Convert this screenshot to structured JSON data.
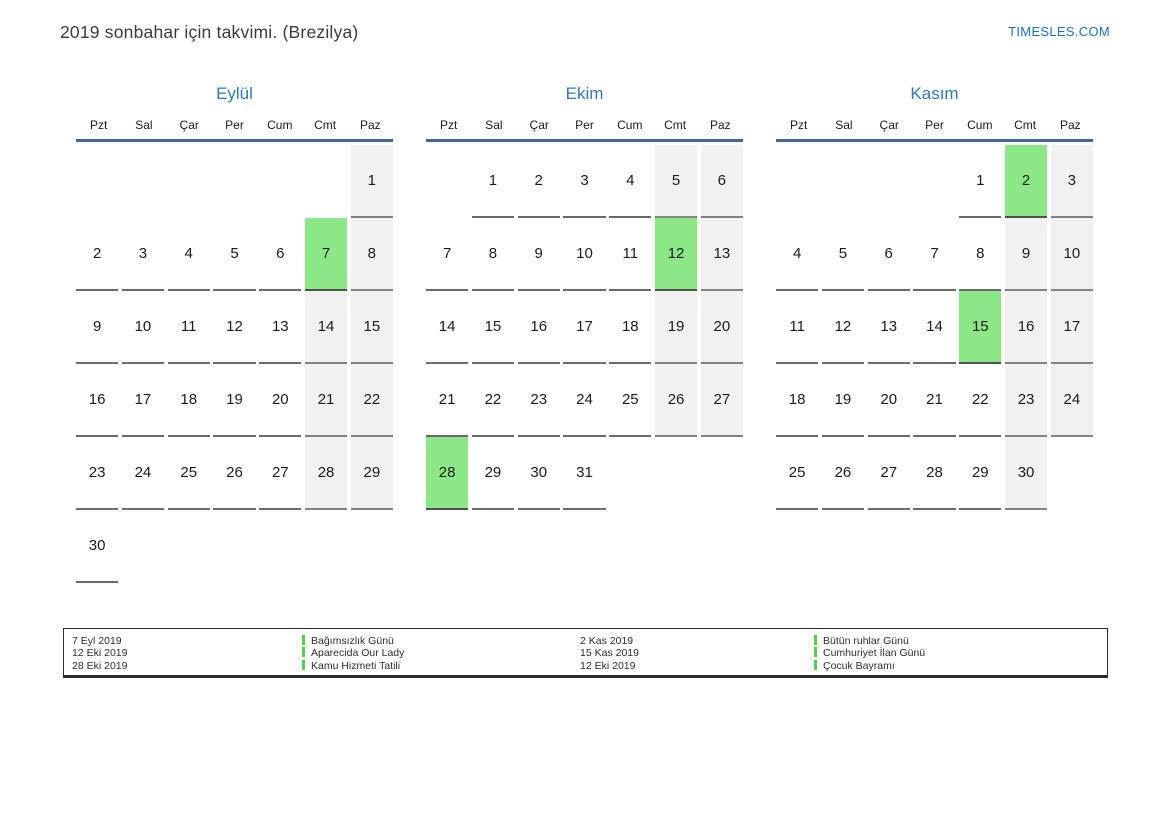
{
  "page": {
    "title": "2019 sonbahar için takvimi. (Brezilya)",
    "site": "TIMESLES.COM"
  },
  "colors": {
    "month_blue": "#2f79b8",
    "header_line_blue": "#44679b",
    "site_blue": "#1d6fc1",
    "holiday_green": "#8ce886",
    "weekend_gray": "#f1f1f1",
    "legend_marker_green": "#52d148"
  },
  "calendar": {
    "weekdays": [
      "Pzt",
      "Sal",
      "Çar",
      "Per",
      "Cum",
      "Cmt",
      "Paz"
    ],
    "months": [
      {
        "name": "Eylül",
        "holidays": [
          "7"
        ],
        "weeks": [
          [
            "",
            "",
            "",
            "",
            "",
            "",
            "1"
          ],
          [
            "2",
            "3",
            "4",
            "5",
            "6",
            "7",
            "8"
          ],
          [
            "9",
            "10",
            "11",
            "12",
            "13",
            "14",
            "15"
          ],
          [
            "16",
            "17",
            "18",
            "19",
            "20",
            "21",
            "22"
          ],
          [
            "23",
            "24",
            "25",
            "26",
            "27",
            "28",
            "29"
          ],
          [
            "30",
            "",
            "",
            "",
            "",
            "",
            ""
          ]
        ]
      },
      {
        "name": "Ekim",
        "holidays": [
          "12",
          "28"
        ],
        "weeks": [
          [
            "",
            "1",
            "2",
            "3",
            "4",
            "5",
            "6"
          ],
          [
            "7",
            "8",
            "9",
            "10",
            "11",
            "12",
            "13"
          ],
          [
            "14",
            "15",
            "16",
            "17",
            "18",
            "19",
            "20"
          ],
          [
            "21",
            "22",
            "23",
            "24",
            "25",
            "26",
            "27"
          ],
          [
            "28",
            "29",
            "30",
            "31",
            "",
            "",
            ""
          ]
        ]
      },
      {
        "name": "Kasım",
        "holidays": [
          "2",
          "15"
        ],
        "weeks": [
          [
            "",
            "",
            "",
            "",
            "1",
            "2",
            "3"
          ],
          [
            "4",
            "5",
            "6",
            "7",
            "8",
            "9",
            "10"
          ],
          [
            "11",
            "12",
            "13",
            "14",
            "15",
            "16",
            "17"
          ],
          [
            "18",
            "19",
            "20",
            "21",
            "22",
            "23",
            "24"
          ],
          [
            "25",
            "26",
            "27",
            "28",
            "29",
            "30",
            ""
          ]
        ]
      }
    ]
  },
  "legend": {
    "items": [
      {
        "date": "7 Eyl 2019",
        "name": "Bağımsızlık Günü"
      },
      {
        "date": "12 Eki 2019",
        "name": "Aparecida Our Lady"
      },
      {
        "date": "28 Eki 2019",
        "name": "Kamu Hizmeti Tatili"
      },
      {
        "date": "2 Kas 2019",
        "name": "Bütün ruhlar Günü"
      },
      {
        "date": "15 Kas 2019",
        "name": "Cumhuriyet İlan Günü"
      },
      {
        "date": "12 Eki 2019",
        "name": "Çocuk Bayramı"
      }
    ]
  }
}
